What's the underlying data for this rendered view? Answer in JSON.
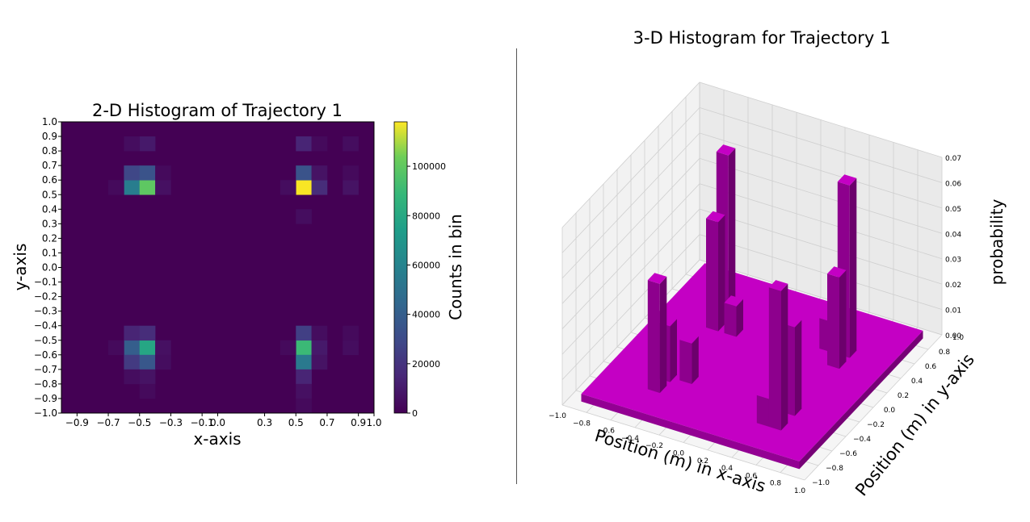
{
  "chart_data": [
    {
      "type": "heatmap",
      "title": "2-D Histogram of Trajectory 1",
      "xlabel": "x-axis",
      "ylabel": "y-axis",
      "xlim": [
        -1.0,
        1.0
      ],
      "ylim": [
        -1.0,
        1.0
      ],
      "x_ticks": [
        "−0.9",
        "−0.7",
        "−0.5",
        "−0.3",
        "−0.1",
        "0.0",
        "0.3",
        "0.5",
        "0.7",
        "0.9",
        "1.0"
      ],
      "x_tick_values": [
        -0.9,
        -0.7,
        -0.5,
        -0.3,
        -0.1,
        0.0,
        0.3,
        0.5,
        0.7,
        0.9,
        1.0
      ],
      "y_ticks": [
        "1.0",
        "0.9",
        "0.8",
        "0.7",
        "0.6",
        "0.5",
        "0.4",
        "0.3",
        "0.2",
        "0.1",
        "0.0",
        "−0.1",
        "−0.2",
        "−0.3",
        "−0.4",
        "−0.5",
        "−0.6",
        "−0.7",
        "−0.8",
        "−0.9",
        "−1.0"
      ],
      "y_tick_values": [
        1.0,
        0.9,
        0.8,
        0.7,
        0.6,
        0.5,
        0.4,
        0.3,
        0.2,
        0.1,
        0.0,
        -0.1,
        -0.2,
        -0.3,
        -0.4,
        -0.5,
        -0.6,
        -0.7,
        -0.8,
        -0.9,
        -1.0
      ],
      "bins": 20,
      "colormap": "viridis",
      "colorbar": {
        "label": "Counts in bin",
        "range": [
          0,
          118000
        ],
        "ticks": [
          "0",
          "20000",
          "40000",
          "60000",
          "80000",
          "100000"
        ],
        "tick_values": [
          0,
          20000,
          40000,
          60000,
          80000,
          100000
        ]
      },
      "cells": [
        {
          "x": -0.55,
          "y": 0.55,
          "count": 50000
        },
        {
          "x": -0.45,
          "y": 0.55,
          "count": 88000
        },
        {
          "x": -0.55,
          "y": 0.65,
          "count": 25000
        },
        {
          "x": -0.45,
          "y": 0.65,
          "count": 30000
        },
        {
          "x": -0.45,
          "y": 0.85,
          "count": 8000
        },
        {
          "x": -0.55,
          "y": 0.85,
          "count": 4000
        },
        {
          "x": -0.65,
          "y": 0.55,
          "count": 3000
        },
        {
          "x": -0.35,
          "y": 0.55,
          "count": 5000
        },
        {
          "x": -0.35,
          "y": 0.65,
          "count": 3000
        },
        {
          "x": 0.55,
          "y": 0.55,
          "count": 117000
        },
        {
          "x": 0.55,
          "y": 0.65,
          "count": 30000
        },
        {
          "x": 0.65,
          "y": 0.55,
          "count": 15000
        },
        {
          "x": 0.65,
          "y": 0.65,
          "count": 6000
        },
        {
          "x": 0.55,
          "y": 0.85,
          "count": 12000
        },
        {
          "x": 0.45,
          "y": 0.55,
          "count": 4000
        },
        {
          "x": 0.85,
          "y": 0.55,
          "count": 6000
        },
        {
          "x": 0.85,
          "y": 0.65,
          "count": 3000
        },
        {
          "x": 0.85,
          "y": 0.85,
          "count": 4000
        },
        {
          "x": 0.65,
          "y": 0.85,
          "count": 3000
        },
        {
          "x": 0.55,
          "y": 0.35,
          "count": 4000
        },
        {
          "x": -0.55,
          "y": -0.55,
          "count": 35000
        },
        {
          "x": -0.45,
          "y": -0.55,
          "count": 70000
        },
        {
          "x": -0.55,
          "y": -0.65,
          "count": 20000
        },
        {
          "x": -0.45,
          "y": -0.65,
          "count": 32000
        },
        {
          "x": -0.55,
          "y": -0.45,
          "count": 12000
        },
        {
          "x": -0.45,
          "y": -0.45,
          "count": 15000
        },
        {
          "x": -0.45,
          "y": -0.75,
          "count": 6000
        },
        {
          "x": -0.55,
          "y": -0.75,
          "count": 4000
        },
        {
          "x": -0.65,
          "y": -0.55,
          "count": 3000
        },
        {
          "x": -0.35,
          "y": -0.55,
          "count": 5000
        },
        {
          "x": -0.35,
          "y": -0.65,
          "count": 4000
        },
        {
          "x": -0.45,
          "y": -0.85,
          "count": 3000
        },
        {
          "x": 0.55,
          "y": -0.55,
          "count": 80000
        },
        {
          "x": 0.55,
          "y": -0.65,
          "count": 48000
        },
        {
          "x": 0.55,
          "y": -0.45,
          "count": 22000
        },
        {
          "x": 0.55,
          "y": -0.75,
          "count": 12000
        },
        {
          "x": 0.65,
          "y": -0.55,
          "count": 8000
        },
        {
          "x": 0.65,
          "y": -0.65,
          "count": 6000
        },
        {
          "x": 0.65,
          "y": -0.45,
          "count": 4000
        },
        {
          "x": 0.45,
          "y": -0.55,
          "count": 3000
        },
        {
          "x": 0.85,
          "y": -0.55,
          "count": 4000
        },
        {
          "x": 0.85,
          "y": -0.45,
          "count": 3000
        },
        {
          "x": 0.55,
          "y": -0.85,
          "count": 5000
        },
        {
          "x": 0.55,
          "y": -0.95,
          "count": 3000
        }
      ]
    },
    {
      "type": "bar3d",
      "title": "3-D Histogram for Trajectory 1",
      "xlabel": "Position (m) in x-axis",
      "ylabel": "Position (m) in y-axis",
      "zlabel": "probability",
      "xlim": [
        -1.0,
        1.0
      ],
      "ylim": [
        -1.0,
        1.0
      ],
      "zlim": [
        0.0,
        0.07
      ],
      "x_ticks": [
        "−1.0",
        "−0.8",
        "−0.6",
        "−0.4",
        "−0.2",
        "0.0",
        "0.2",
        "0.4",
        "0.6",
        "0.8",
        "1.0"
      ],
      "x_tick_values": [
        -1.0,
        -0.8,
        -0.6,
        -0.4,
        -0.2,
        0.0,
        0.2,
        0.4,
        0.6,
        0.8,
        1.0
      ],
      "y_ticks": [
        "−1.0",
        "−0.8",
        "−0.6",
        "−0.4",
        "−0.2",
        "0.0",
        "0.2",
        "0.4",
        "0.6",
        "0.8",
        "1.0"
      ],
      "y_tick_values": [
        -1.0,
        -0.8,
        -0.6,
        -0.4,
        -0.2,
        0.0,
        0.2,
        0.4,
        0.6,
        0.8,
        1.0
      ],
      "z_ticks": [
        "0.00",
        "0.01",
        "0.02",
        "0.03",
        "0.04",
        "0.05",
        "0.06",
        "0.07"
      ],
      "z_tick_values": [
        0.0,
        0.01,
        0.02,
        0.03,
        0.04,
        0.05,
        0.06,
        0.07
      ],
      "bar_color": "#c400c4",
      "bars": [
        {
          "x": -0.5,
          "y": -0.5,
          "z": 0.043
        },
        {
          "x": -0.5,
          "y": -0.35,
          "z": 0.022
        },
        {
          "x": -0.35,
          "y": -0.3,
          "z": 0.016
        },
        {
          "x": -0.5,
          "y": 0.5,
          "z": 0.065
        },
        {
          "x": -0.5,
          "y": 0.35,
          "z": 0.043
        },
        {
          "x": -0.35,
          "y": 0.35,
          "z": 0.012
        },
        {
          "x": 0.5,
          "y": -0.5,
          "z": 0.055
        },
        {
          "x": 0.5,
          "y": -0.3,
          "z": 0.035
        },
        {
          "x": 0.4,
          "y": -0.5,
          "z": 0.011
        },
        {
          "x": 0.5,
          "y": 0.5,
          "z": 0.068
        },
        {
          "x": 0.5,
          "y": 0.35,
          "z": 0.036
        },
        {
          "x": 0.35,
          "y": 0.5,
          "z": 0.012
        }
      ],
      "floor_level": 0.003
    }
  ]
}
